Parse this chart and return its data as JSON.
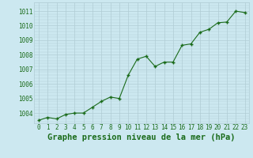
{
  "hours": [
    0,
    1,
    2,
    3,
    4,
    5,
    6,
    7,
    8,
    9,
    10,
    11,
    12,
    13,
    14,
    15,
    16,
    17,
    18,
    19,
    20,
    21,
    22,
    23
  ],
  "pressure": [
    1003.5,
    1003.7,
    1003.6,
    1003.9,
    1004.0,
    1004.0,
    1004.4,
    1004.8,
    1005.1,
    1005.0,
    1006.6,
    1007.7,
    1007.9,
    1007.2,
    1007.5,
    1007.5,
    1008.65,
    1008.75,
    1009.55,
    1009.75,
    1010.2,
    1010.25,
    1011.0,
    1010.9
  ],
  "line_color": "#1a6b1a",
  "marker_color": "#1a6b1a",
  "bg_color": "#cce8f0",
  "grid_color": "#b0ccd4",
  "title": "Graphe pression niveau de la mer (hPa)",
  "title_color": "#1a6b1a",
  "ylabel_ticks": [
    1004,
    1005,
    1006,
    1007,
    1008,
    1009,
    1010,
    1011
  ],
  "ylim": [
    1003.3,
    1011.6
  ],
  "xlim": [
    -0.5,
    23.5
  ],
  "tick_fontsize": 5.5,
  "title_fontsize": 7.5
}
